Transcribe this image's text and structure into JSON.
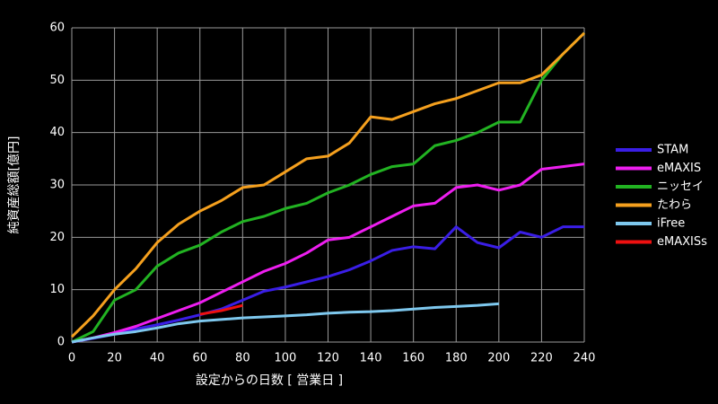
{
  "chart_data": {
    "type": "line",
    "xlabel": "設定からの日数 [ 営業日 ]",
    "ylabel": "純資産総額[億円]",
    "x": [
      0,
      10,
      20,
      30,
      40,
      50,
      60,
      70,
      80,
      90,
      100,
      110,
      120,
      130,
      140,
      150,
      160,
      170,
      180,
      190,
      200,
      210,
      220,
      230,
      240
    ],
    "series": [
      {
        "name": "STAM",
        "color": "#3a1ee6",
        "values": [
          0,
          0.7,
          1.5,
          2.5,
          3.3,
          4.2,
          5.2,
          6.3,
          8,
          9.7,
          10.5,
          11.5,
          12.5,
          13.8,
          15.5,
          17.5,
          18.2,
          17.8,
          22,
          19,
          18,
          21,
          20,
          22,
          22
        ]
      },
      {
        "name": "eMAXIS",
        "color": "#ee1ef0",
        "values": [
          0,
          0.8,
          1.8,
          3,
          4.5,
          6,
          7.5,
          9.5,
          11.5,
          13.5,
          15,
          17,
          19.5,
          20,
          22,
          24,
          26,
          26.5,
          29.5,
          30,
          29,
          30,
          33,
          33.5,
          34
        ]
      },
      {
        "name": "ニッセイ",
        "color": "#22b322",
        "values": [
          0,
          2,
          8,
          10,
          14.5,
          17,
          18.5,
          21,
          23,
          24,
          25.5,
          26.5,
          28.5,
          30,
          32,
          33.5,
          34,
          37.5,
          38.5,
          40,
          42,
          42,
          50,
          55,
          59
        ]
      },
      {
        "name": "たわら",
        "color": "#f5a01e",
        "values": [
          1,
          5,
          10,
          14,
          19,
          22.5,
          25,
          27,
          29.5,
          30,
          32.5,
          35,
          35.5,
          38,
          43,
          42.5,
          44,
          45.5,
          46.5,
          48,
          49.5,
          49.5,
          51,
          55,
          59
        ]
      },
      {
        "name": "iFree",
        "color": "#7ec8ee",
        "values": [
          0,
          0.8,
          1.5,
          2,
          2.7,
          3.5,
          4,
          4.3,
          4.6,
          4.8,
          5,
          5.2,
          5.5,
          5.7,
          5.8,
          6,
          6.3,
          6.6,
          6.8,
          7,
          7.3,
          null,
          null,
          null,
          null
        ]
      },
      {
        "name": "eMAXISs",
        "color": "#ee1010",
        "values": [
          null,
          null,
          null,
          null,
          null,
          null,
          5.3,
          6,
          7,
          null,
          null,
          null,
          null,
          null,
          null,
          null,
          null,
          null,
          null,
          null,
          null,
          null,
          null,
          null,
          null
        ]
      }
    ],
    "xlim": [
      0,
      240
    ],
    "xticks": [
      0,
      20,
      40,
      60,
      80,
      100,
      120,
      140,
      160,
      180,
      200,
      220,
      240
    ],
    "ylim": [
      0,
      60
    ],
    "yticks": [
      0,
      10,
      20,
      30,
      40,
      50,
      60
    ],
    "grid": true,
    "legend": "right"
  }
}
